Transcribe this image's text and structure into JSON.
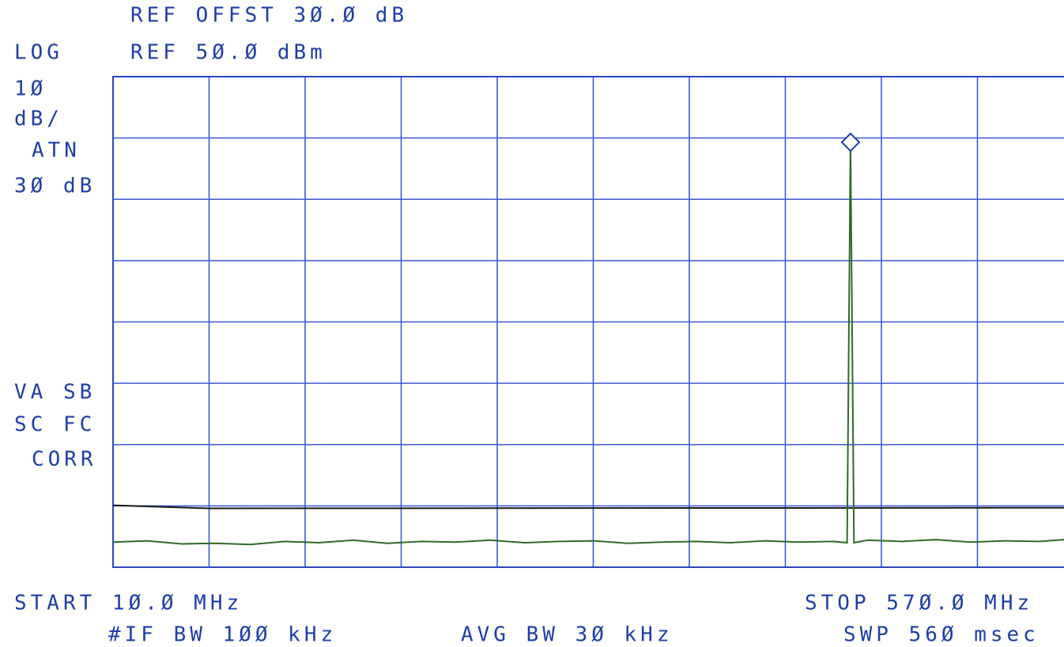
{
  "chart_data": {
    "type": "line",
    "annotations": [
      "REF OFFST 3Ø.Ø dB",
      "LOG",
      "REF 5Ø.Ø dBm",
      "1Ø",
      "dB/",
      "ATN",
      "3Ø dB",
      "VA SB",
      "SC FC",
      "CORR",
      "START 1Ø.Ø MHz",
      "STOP 57Ø.Ø MHz",
      "#IF BW 1ØØ kHz",
      "AVG BW 3Ø kHz",
      "SWP 56Ø msec"
    ],
    "xlim": [
      10,
      570
    ],
    "ylim": [
      -30,
      50
    ],
    "series": [
      {
        "color": "#1a1a1a",
        "x": [
          10,
          66,
          570
        ],
        "values": [
          -19.9,
          -20.4,
          -20.3
        ]
      },
      {
        "color": "#2f6a2a",
        "x": [
          10,
          30,
          50,
          70,
          90,
          110,
          130,
          150,
          170,
          190,
          210,
          230,
          250,
          270,
          290,
          310,
          330,
          350,
          370,
          390,
          410,
          430,
          438,
          440,
          442,
          450,
          470,
          490,
          510,
          530,
          550,
          570
        ],
        "values": [
          -25.9,
          -25.7,
          -26.2,
          -26.1,
          -26.3,
          -25.8,
          -26.0,
          -25.6,
          -26.1,
          -25.8,
          -25.9,
          -25.6,
          -26.0,
          -25.8,
          -25.7,
          -26.1,
          -25.9,
          -25.8,
          -26.0,
          -25.7,
          -25.9,
          -25.8,
          -26.0,
          39.3,
          -26.0,
          -25.6,
          -25.8,
          -25.5,
          -25.9,
          -25.7,
          -25.8,
          -25.4
        ]
      }
    ],
    "marker": {
      "x": 440,
      "y": 39.3
    }
  }
}
